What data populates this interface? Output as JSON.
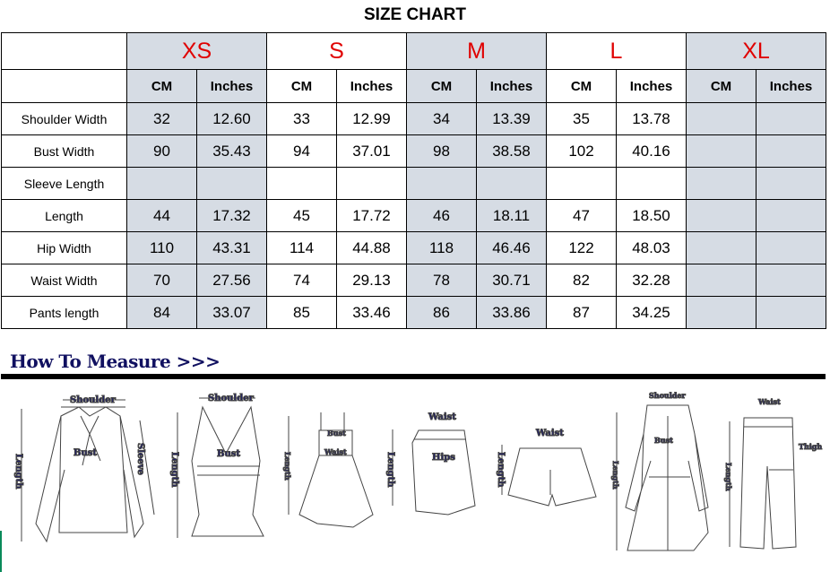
{
  "title": "SIZE CHART",
  "sizes": [
    "XS",
    "S",
    "M",
    "L",
    "XL"
  ],
  "units": [
    "CM",
    "Inches"
  ],
  "rows": [
    {
      "label": "Shoulder Width",
      "values": [
        "32",
        "12.60",
        "33",
        "12.99",
        "34",
        "13.39",
        "35",
        "13.78",
        "",
        ""
      ]
    },
    {
      "label": "Bust Width",
      "values": [
        "90",
        "35.43",
        "94",
        "37.01",
        "98",
        "38.58",
        "102",
        "40.16",
        "",
        ""
      ]
    },
    {
      "label": "Sleeve Length",
      "values": [
        "",
        "",
        "",
        "",
        "",
        "",
        "",
        "",
        "",
        ""
      ]
    },
    {
      "label": "Length",
      "values": [
        "44",
        "17.32",
        "45",
        "17.72",
        "46",
        "18.11",
        "47",
        "18.50",
        "",
        ""
      ]
    },
    {
      "label": "Hip Width",
      "values": [
        "110",
        "43.31",
        "114",
        "44.88",
        "118",
        "46.46",
        "122",
        "48.03",
        "",
        ""
      ]
    },
    {
      "label": "Waist Width",
      "values": [
        "70",
        "27.56",
        "74",
        "29.13",
        "78",
        "30.71",
        "82",
        "32.28",
        "",
        ""
      ]
    },
    {
      "label": "Pants length",
      "values": [
        "84",
        "33.07",
        "85",
        "33.46",
        "86",
        "33.86",
        "87",
        "34.25",
        "",
        ""
      ]
    }
  ],
  "colors": {
    "size_label": "#e00000",
    "shaded": "#d6dce4",
    "measure_text": "#101060"
  },
  "how_to_measure": "How To Measure >>>",
  "diagram_labels": {
    "shoulder": "Shoulder",
    "bust": "Bust",
    "sleeve": "Sleeve",
    "length": "Length",
    "waist": "Waist",
    "hips": "Hips",
    "thigh": "Thigh"
  }
}
